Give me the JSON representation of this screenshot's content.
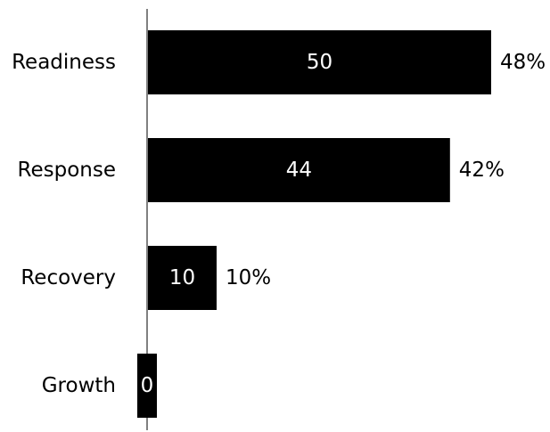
{
  "chart_data": {
    "type": "bar",
    "orientation": "horizontal",
    "categories": [
      "Readiness",
      "Response",
      "Recovery",
      "Growth"
    ],
    "values": [
      50,
      44,
      10,
      0
    ],
    "data_labels": [
      "50",
      "44",
      "10",
      "0"
    ],
    "percent_labels": [
      "48%",
      "42%",
      "10%",
      ""
    ],
    "bar_color": "#000000",
    "axis_color": "#808080",
    "value_label_color": "#ffffff",
    "xlim": [
      0,
      50
    ],
    "grid": false,
    "legend": "none"
  }
}
